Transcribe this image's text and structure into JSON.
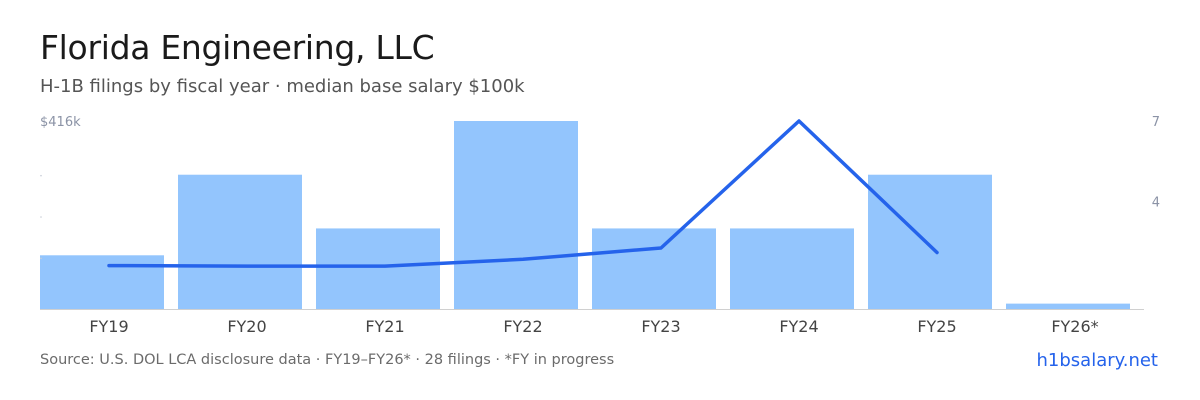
{
  "header": {
    "title": "Florida Engineering, LLC",
    "subtitle": "H-1B filings by fiscal year · median base salary $100k"
  },
  "footer": {
    "source": "Source: U.S. DOL LCA disclosure data · FY19–FY26* · 28 filings · *FY in progress",
    "brand": "h1bsalary.net"
  },
  "colors": {
    "bar": "#93c5fd",
    "line": "#2563eb",
    "axis_text": "#8b93a6",
    "tick_text": "#444444",
    "baseline": "#d0d0d0"
  },
  "chart_data": {
    "type": "bar",
    "categories": [
      "FY19",
      "FY20",
      "FY21",
      "FY22",
      "FY23",
      "FY24",
      "FY25",
      "FY26*"
    ],
    "series": [
      {
        "type": "bar",
        "axis": "right",
        "values": [
          2,
          5,
          3,
          7,
          3,
          3,
          5,
          0.2
        ]
      },
      {
        "type": "line",
        "axis": "left",
        "values": [
          96,
          95,
          95,
          110,
          135,
          416,
          125,
          null
        ]
      }
    ],
    "left_axis": {
      "top_label": "$416k",
      "ylim": [
        0,
        416
      ]
    },
    "right_axis": {
      "ticks": [
        4,
        7
      ],
      "ylim": [
        0,
        7
      ]
    },
    "grid": false,
    "legend": "none"
  }
}
